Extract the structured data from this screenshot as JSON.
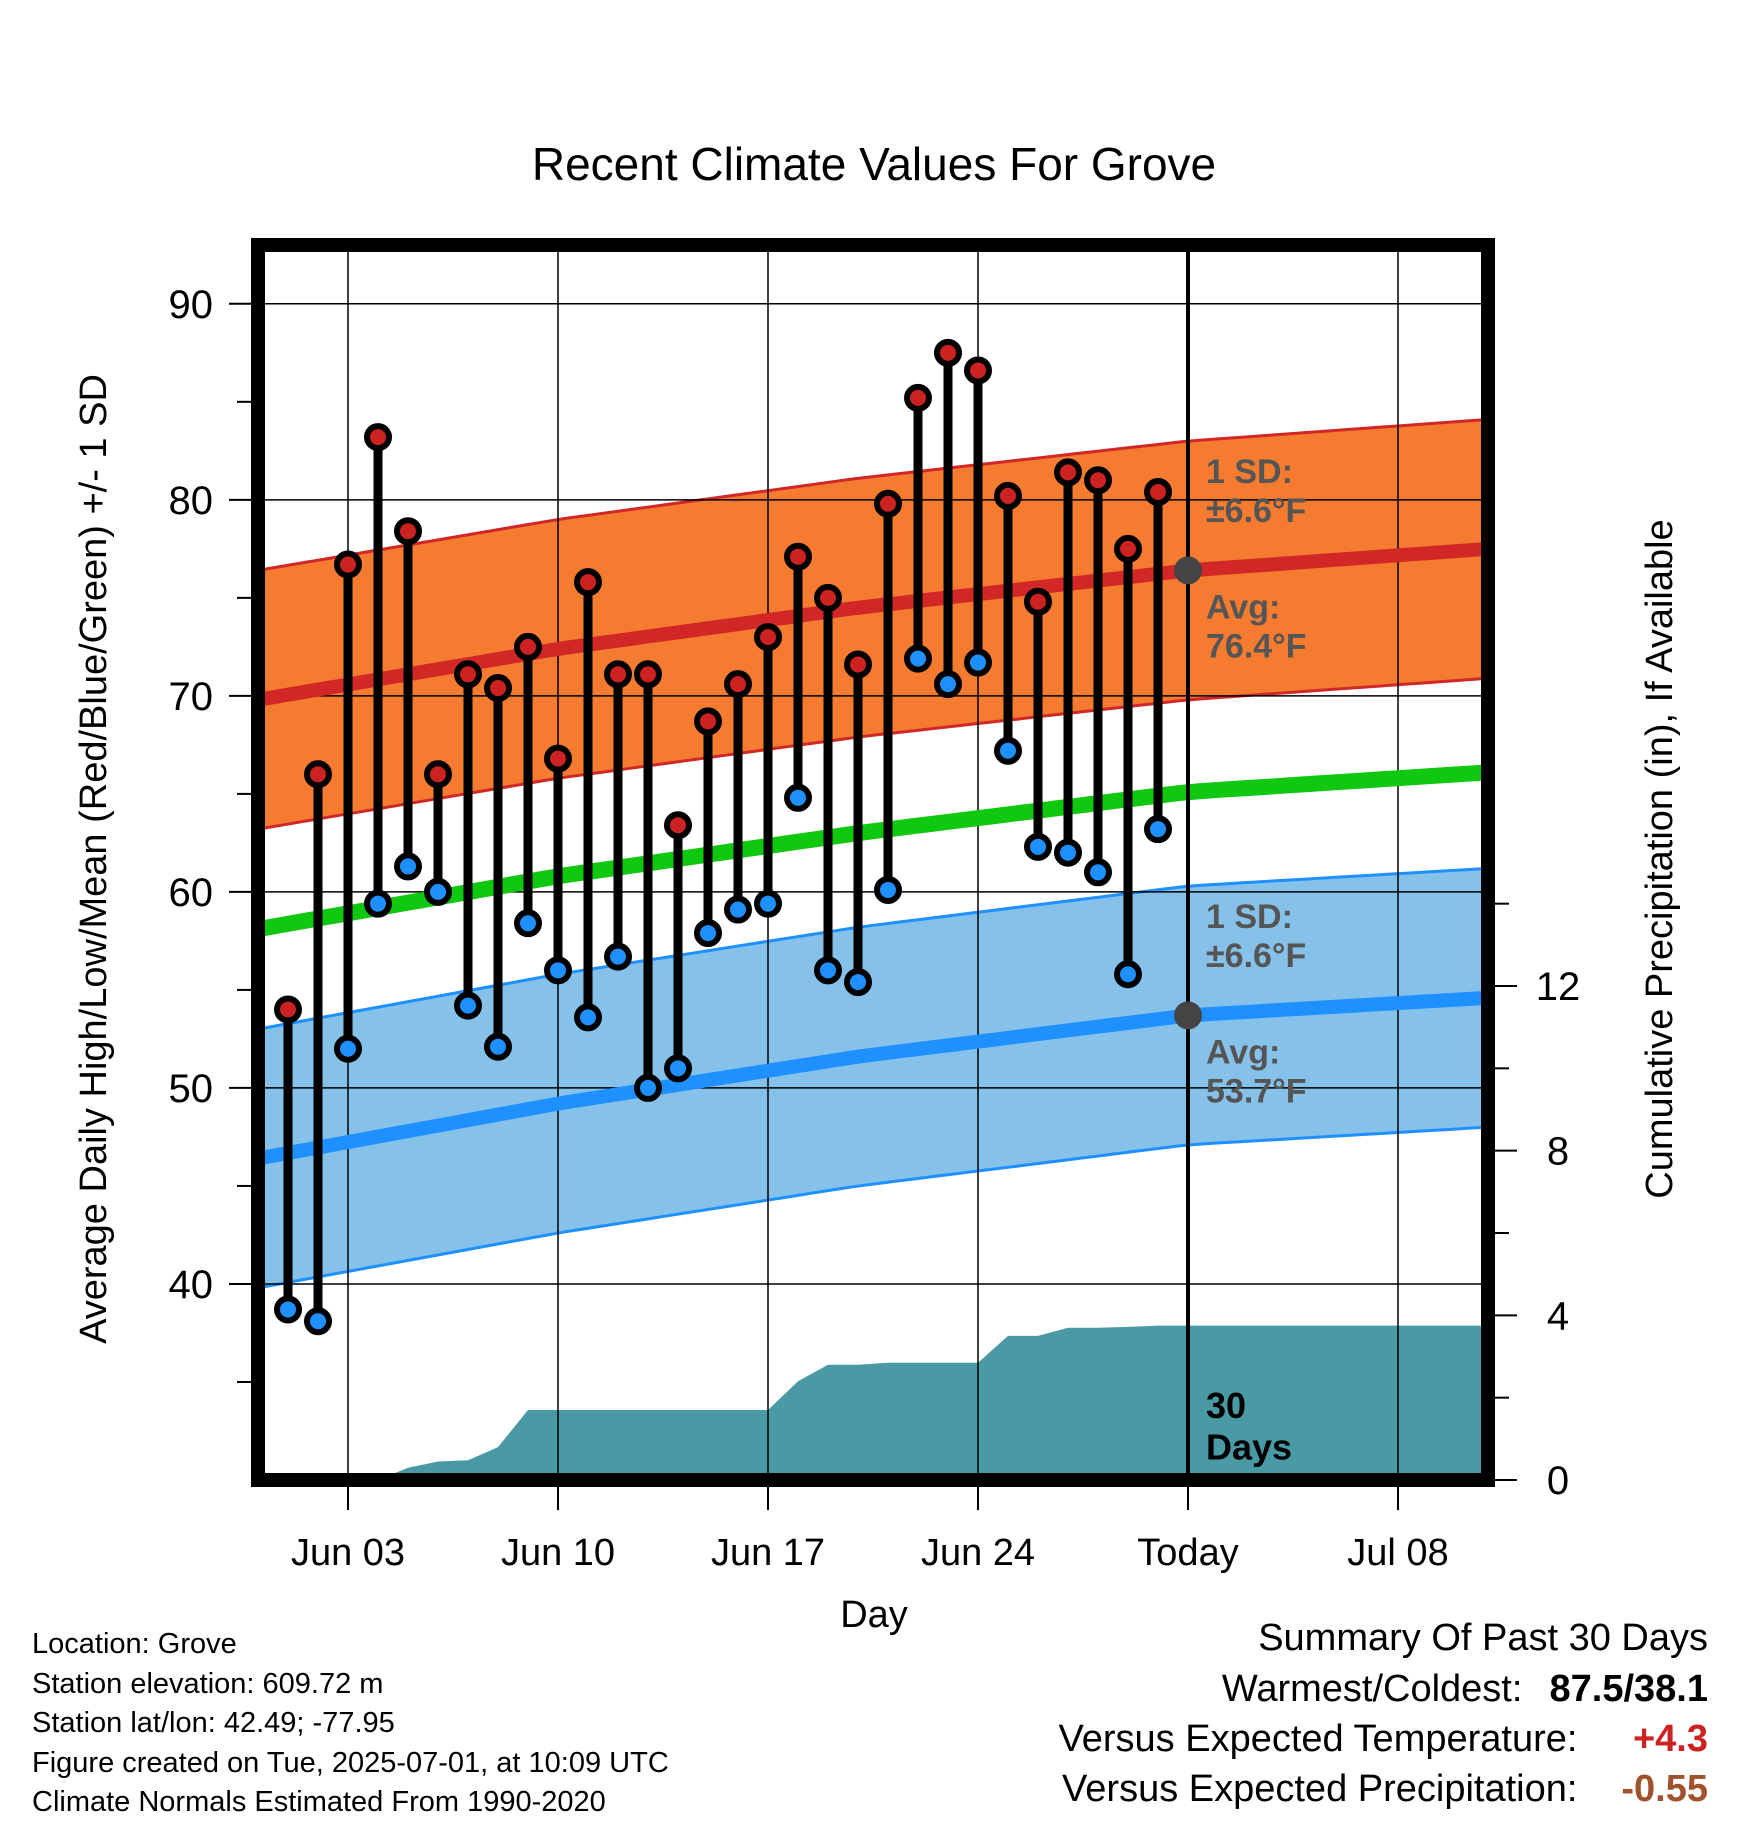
{
  "chart_data": {
    "type": "line",
    "title": "Recent Climate Values For Grove",
    "xlabel": "Day",
    "ylabel": "Average Daily High/Low/Mean (Red/Blue/Green) +/- 1 SD",
    "y2label": "Cumulative Precipitation (in), If Available",
    "ylim": [
      30,
      93
    ],
    "y2lim": [
      0,
      30
    ],
    "yticks": [
      "40",
      "50",
      "60",
      "70",
      "80",
      "90"
    ],
    "y2ticks": [
      "0",
      "4",
      "8",
      "12"
    ],
    "xticks": [
      "Jun 03",
      "Jun 10",
      "Jun 17",
      "Jun 24",
      "Today",
      "Jul 08"
    ],
    "xtick_dates": [
      "2025-06-03",
      "2025-06-10",
      "2025-06-17",
      "2025-06-24",
      "2025-07-01",
      "2025-07-08"
    ],
    "xlim": [
      "2025-05-31",
      "2025-07-11"
    ],
    "today": "2025-07-01",
    "grid": true,
    "dates": [
      "2025-06-01",
      "2025-06-02",
      "2025-06-03",
      "2025-06-04",
      "2025-06-05",
      "2025-06-06",
      "2025-06-07",
      "2025-06-08",
      "2025-06-09",
      "2025-06-10",
      "2025-06-11",
      "2025-06-12",
      "2025-06-13",
      "2025-06-14",
      "2025-06-15",
      "2025-06-16",
      "2025-06-17",
      "2025-06-18",
      "2025-06-19",
      "2025-06-20",
      "2025-06-21",
      "2025-06-22",
      "2025-06-23",
      "2025-06-24",
      "2025-06-25",
      "2025-06-26",
      "2025-06-27",
      "2025-06-28",
      "2025-06-29",
      "2025-06-30"
    ],
    "series": [
      {
        "name": "High",
        "values": [
          54.0,
          66.0,
          76.7,
          83.2,
          78.4,
          66.0,
          71.1,
          70.4,
          72.5,
          66.8,
          75.8,
          71.1,
          71.1,
          63.4,
          68.7,
          70.6,
          73.0,
          77.1,
          75.0,
          71.6,
          79.8,
          85.2,
          87.5,
          86.6,
          80.2,
          74.8,
          81.4,
          81.0,
          77.5,
          80.4
        ]
      },
      {
        "name": "Low",
        "values": [
          38.7,
          38.1,
          52.0,
          59.4,
          61.3,
          60.0,
          54.2,
          52.1,
          58.4,
          56.0,
          53.6,
          56.7,
          50.0,
          51.0,
          57.9,
          59.1,
          59.4,
          64.8,
          56.0,
          55.4,
          60.1,
          71.9,
          70.6,
          71.7,
          67.2,
          62.3,
          62.0,
          61.0,
          55.8,
          63.2
        ]
      }
    ],
    "normals": {
      "dates": [
        "2025-05-31",
        "2025-06-10",
        "2025-06-20",
        "2025-07-01",
        "2025-07-11"
      ],
      "high_avg": [
        69.8,
        72.4,
        74.5,
        76.4,
        77.5
      ],
      "low_avg": [
        46.4,
        49.2,
        51.6,
        53.7,
        54.6
      ],
      "mean_avg": [
        58.1,
        60.8,
        63.0,
        65.1,
        66.1
      ],
      "sd_label": "1 SD:",
      "high_sd_text": "±6.6°F",
      "low_sd_text": "±6.6°F",
      "avg_label": "Avg:",
      "high_avg_text": "76.4°F",
      "low_avg_text": "53.7°F",
      "sd": 6.6
    },
    "precipitation": {
      "dates": [
        "2025-06-01",
        "2025-06-02",
        "2025-06-03",
        "2025-06-04",
        "2025-06-05",
        "2025-06-06",
        "2025-06-07",
        "2025-06-08",
        "2025-06-09",
        "2025-06-10",
        "2025-06-11",
        "2025-06-12",
        "2025-06-13",
        "2025-06-14",
        "2025-06-15",
        "2025-06-16",
        "2025-06-17",
        "2025-06-18",
        "2025-06-19",
        "2025-06-20",
        "2025-06-21",
        "2025-06-22",
        "2025-06-23",
        "2025-06-24",
        "2025-06-25",
        "2025-06-26",
        "2025-06-27",
        "2025-06-28",
        "2025-06-29",
        "2025-06-30",
        "2025-07-01",
        "2025-07-11"
      ],
      "values": [
        0,
        0,
        0,
        0,
        0.3,
        0.45,
        0.48,
        0.8,
        1.7,
        1.7,
        1.7,
        1.7,
        1.7,
        1.7,
        1.7,
        1.7,
        1.7,
        2.4,
        2.8,
        2.8,
        2.85,
        2.85,
        2.85,
        2.85,
        3.5,
        3.5,
        3.7,
        3.7,
        3.72,
        3.75,
        3.75,
        3.75
      ],
      "label": "30\nDays"
    },
    "colors": {
      "high_band": "#f47b30",
      "high_line": "#d22727",
      "low_band": "#85c1e9",
      "low_line": "#1e90ff",
      "mean_line": "#10c810",
      "precip": "#4a9aa5",
      "high_dot": "#cc2222",
      "low_dot": "#1e90ff"
    }
  },
  "info": {
    "location": "Location: Grove",
    "elevation": "Station elevation: 609.72 m",
    "latlon": "Station lat/lon: 42.49; -77.95",
    "created": "Figure created on Tue, 2025-07-01, at 10:09 UTC",
    "normals": "Climate Normals Estimated From 1990-2020"
  },
  "summary": {
    "heading": "Summary Of Past 30 Days",
    "warmest_label": "Warmest/Coldest:",
    "warmest_value": "87.5/38.1",
    "temp_label": "Versus Expected Temperature:",
    "temp_value": "+4.3",
    "temp_color": "#cc2222",
    "precip_label": "Versus Expected Precipitation:",
    "precip_value": "-0.55",
    "precip_color": "#a0522d"
  }
}
